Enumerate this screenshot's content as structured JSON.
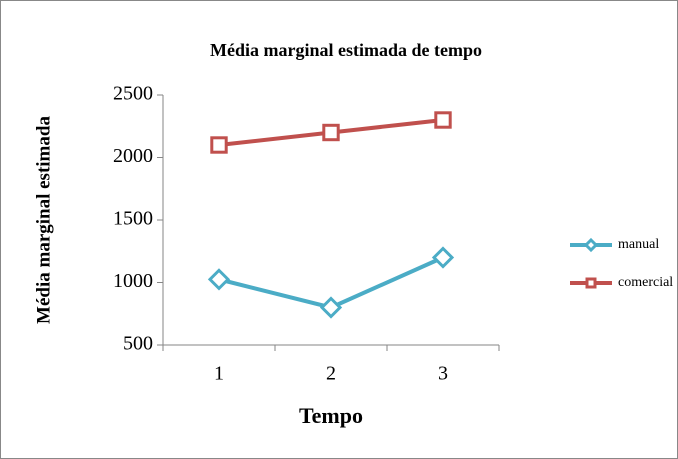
{
  "chart_data": {
    "type": "line",
    "title": "Média marginal estimada de tempo",
    "x_label": "Tempo",
    "y_label": "Média marginal estimada",
    "categories": [
      "1",
      "2",
      "3"
    ],
    "series": [
      {
        "name": "manual",
        "color": "#4bacc6",
        "marker": "diamond",
        "values": [
          1025,
          800,
          1200
        ]
      },
      {
        "name": "comercial",
        "color": "#c0504d",
        "marker": "square",
        "values": [
          2100,
          2200,
          2300
        ]
      }
    ],
    "ylim": [
      500,
      2500
    ],
    "yticks": [
      500,
      1000,
      1500,
      2000,
      2500
    ],
    "grid": false,
    "legend": "right"
  }
}
